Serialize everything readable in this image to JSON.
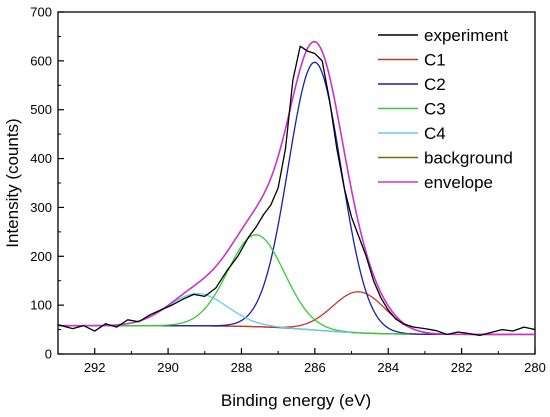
{
  "chart_data": {
    "type": "line",
    "xlabel": "Binding energy (eV)",
    "ylabel": "Intensity (counts)",
    "x_axis_reversed": true,
    "xlim": [
      293,
      280
    ],
    "ylim": [
      0,
      700
    ],
    "x_ticks": [
      292,
      290,
      288,
      286,
      284,
      282,
      280
    ],
    "y_ticks": [
      0,
      100,
      200,
      300,
      400,
      500,
      600,
      700
    ],
    "grid": false,
    "legend_position": "top-right",
    "background": {
      "x_start": 293,
      "x_end": 280,
      "y_start": 58,
      "y_end": 40,
      "step_center": 286,
      "step_width": 0.8
    },
    "series": [
      {
        "name": "experiment",
        "color": "#000000",
        "kind": "data",
        "x": [
          293.0,
          292.6,
          292.3,
          292.0,
          291.7,
          291.4,
          291.1,
          290.8,
          290.5,
          290.2,
          289.9,
          289.6,
          289.3,
          289.0,
          288.7,
          288.4,
          288.1,
          287.8,
          287.6,
          287.4,
          287.2,
          287.0,
          286.8,
          286.6,
          286.4,
          286.2,
          286.0,
          285.8,
          285.6,
          285.4,
          285.2,
          285.0,
          284.8,
          284.6,
          284.4,
          284.2,
          284.0,
          283.8,
          283.6,
          283.3,
          283.0,
          282.7,
          282.4,
          282.1,
          281.8,
          281.5,
          281.2,
          280.9,
          280.6,
          280.3,
          280.0
        ],
        "y": [
          60,
          52,
          58,
          47,
          62,
          55,
          70,
          66,
          80,
          90,
          100,
          112,
          122,
          118,
          135,
          170,
          200,
          240,
          260,
          285,
          305,
          340,
          420,
          560,
          630,
          620,
          615,
          600,
          520,
          420,
          340,
          280,
          240,
          200,
          150,
          115,
          90,
          72,
          62,
          55,
          52,
          48,
          40,
          45,
          42,
          38,
          44,
          50,
          47,
          55,
          50
        ]
      },
      {
        "name": "C1",
        "color": "#c0392b",
        "kind": "peak",
        "center": 284.8,
        "height": 84,
        "fwhm": 1.7
      },
      {
        "name": "C2",
        "color": "#1c1cb0",
        "kind": "peak",
        "center": 286.0,
        "height": 548,
        "fwhm": 1.7
      },
      {
        "name": "C3",
        "color": "#33cc33",
        "kind": "peak",
        "center": 287.6,
        "height": 188,
        "fwhm": 1.8
      },
      {
        "name": "C4",
        "color": "#66ccee",
        "kind": "peak",
        "center": 289.2,
        "height": 66,
        "fwhm": 1.9
      },
      {
        "name": "background",
        "color": "#7a6a00",
        "kind": "background"
      },
      {
        "name": "envelope",
        "color": "#cc33cc",
        "kind": "envelope"
      }
    ]
  }
}
